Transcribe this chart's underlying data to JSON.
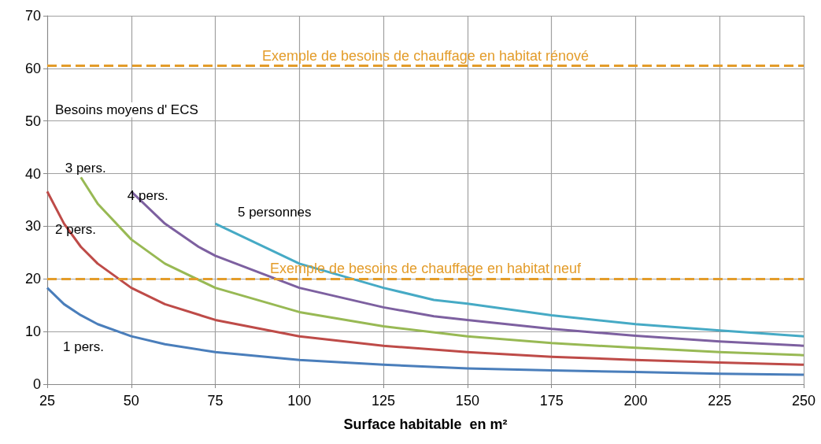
{
  "chart_data": {
    "type": "line",
    "xlabel": "Surface habitable  en m²",
    "xlim": [
      25,
      250
    ],
    "xticks": [
      25,
      50,
      75,
      100,
      125,
      150,
      175,
      200,
      225,
      250
    ],
    "ylim": [
      0,
      70
    ],
    "yticks": [
      0,
      10,
      20,
      30,
      40,
      50,
      60,
      70
    ],
    "grid": true,
    "legend": false,
    "marker": "none",
    "line_style": "solid",
    "annotations": [
      "Besoins moyens d' ECS"
    ],
    "ref_lines": [
      {
        "axis": "y",
        "value": 60.5,
        "label": "Exemple de besoins de chauffage en habitat rénové",
        "color": "#e39c2a",
        "line_style": "dashed"
      },
      {
        "axis": "y",
        "value": 20,
        "label": "Exemple de besoins de chauffage en habitat neuf",
        "color": "#e39c2a",
        "line_style": "dashed"
      }
    ],
    "series": [
      {
        "name": "1 pers.",
        "color": "#4a7ebb",
        "x": [
          25,
          30,
          35,
          40,
          50,
          60,
          75,
          100,
          125,
          150,
          175,
          200,
          225,
          250
        ],
        "values": [
          18.3,
          15.2,
          13.1,
          11.4,
          9.1,
          7.6,
          6.1,
          4.6,
          3.7,
          3.0,
          2.6,
          2.3,
          2.0,
          1.8
        ]
      },
      {
        "name": "2 pers.",
        "color": "#be4b48",
        "x": [
          25,
          30,
          35,
          40,
          50,
          60,
          75,
          100,
          125,
          150,
          175,
          200,
          225,
          250
        ],
        "values": [
          36.6,
          30.5,
          26.1,
          22.9,
          18.3,
          15.2,
          12.2,
          9.1,
          7.3,
          6.1,
          5.2,
          4.6,
          4.1,
          3.7
        ]
      },
      {
        "name": "3 pers.",
        "color": "#98b954",
        "x": [
          35,
          40,
          50,
          60,
          75,
          100,
          125,
          150,
          175,
          200,
          225,
          250
        ],
        "values": [
          39.3,
          34.3,
          27.5,
          22.9,
          18.3,
          13.7,
          11.0,
          9.1,
          7.8,
          6.9,
          6.1,
          5.5
        ]
      },
      {
        "name": "4 pers.",
        "color": "#7d60a0",
        "x": [
          50,
          60,
          70,
          75,
          100,
          125,
          140,
          150,
          175,
          200,
          225,
          250
        ],
        "values": [
          36.6,
          30.5,
          26.1,
          24.4,
          18.3,
          14.6,
          12.9,
          12.2,
          10.5,
          9.2,
          8.1,
          7.3
        ]
      },
      {
        "name": "5 personnes",
        "color": "#46aac5",
        "x": [
          75,
          100,
          125,
          140,
          150,
          175,
          200,
          225,
          250
        ],
        "values": [
          30.5,
          22.9,
          18.3,
          16.0,
          15.3,
          13.1,
          11.4,
          10.2,
          9.1
        ]
      }
    ]
  }
}
